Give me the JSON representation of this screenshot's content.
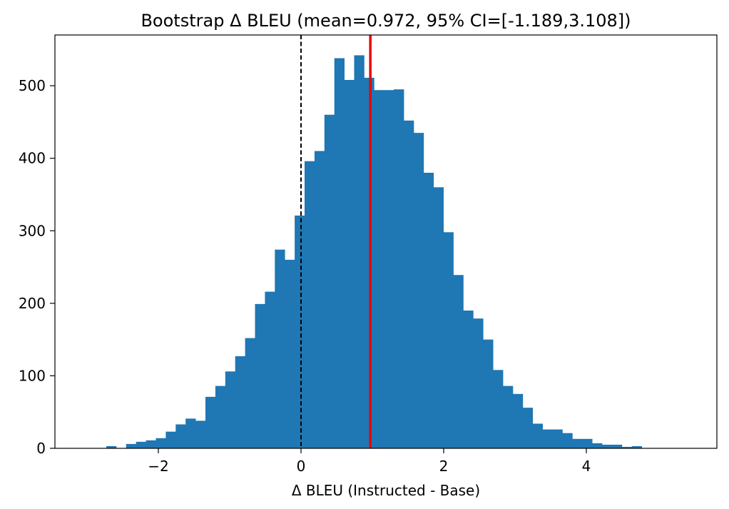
{
  "chart_data": {
    "type": "histogram",
    "title": "Bootstrap Δ BLEU (mean=0.972, 95% CI=[-1.189,3.108])",
    "xlabel": "Δ BLEU (Instructed - Base)",
    "ylabel": "",
    "xlim": [
      -3.45,
      5.83
    ],
    "ylim": [
      0,
      570
    ],
    "xticks": [
      -2,
      0,
      2,
      4
    ],
    "xtick_labels": [
      "−2",
      "0",
      "2",
      "4"
    ],
    "yticks": [
      0,
      100,
      200,
      300,
      400,
      500
    ],
    "ytick_labels": [
      "0",
      "100",
      "200",
      "300",
      "400",
      "500"
    ],
    "bin_start": -2.73,
    "bin_width": 0.139,
    "counts": [
      3,
      0,
      6,
      9,
      11,
      14,
      23,
      33,
      41,
      38,
      71,
      86,
      106,
      127,
      152,
      199,
      216,
      274,
      260,
      321,
      396,
      410,
      460,
      538,
      508,
      542,
      511,
      494,
      494,
      495,
      452,
      435,
      380,
      360,
      298,
      239,
      190,
      179,
      150,
      108,
      86,
      75,
      56,
      34,
      26,
      26,
      21,
      13,
      13,
      7,
      5,
      5,
      2,
      3
    ],
    "bar_color": "#1f77b4",
    "reference_lines": [
      {
        "x": 0,
        "style": "dashed",
        "color": "#000000"
      },
      {
        "x": 0.972,
        "style": "solid",
        "color": "#e8000b"
      }
    ],
    "grid": false,
    "legend": "none"
  }
}
